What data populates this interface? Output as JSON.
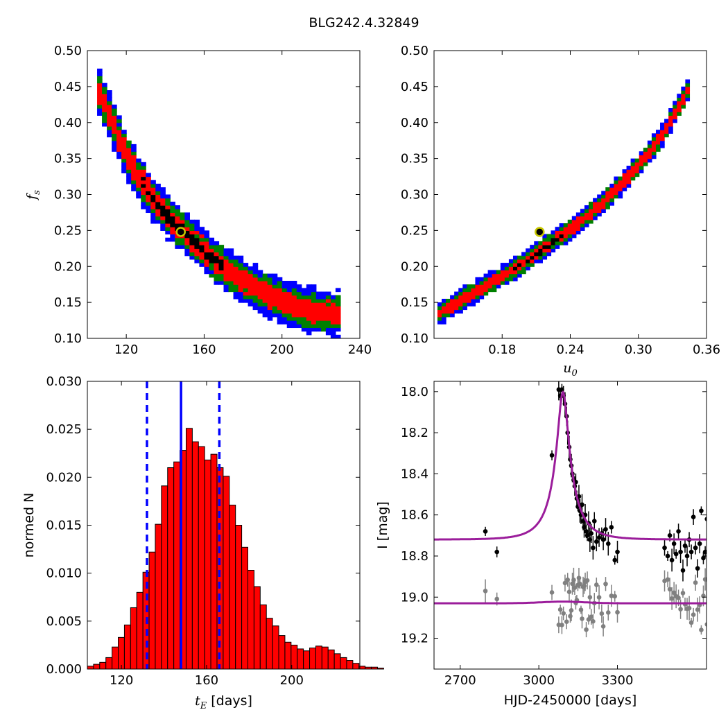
{
  "figure": {
    "title": "BLG242.4.32849"
  },
  "colors": {
    "hist_bar": "#ff0000",
    "hist_edge": "#000000",
    "vline": "#0000ff",
    "model_curve": "#9b1d9b",
    "source_points": "#000000",
    "residual_points": "#808080",
    "marker_fill": "#000000",
    "marker_edge": "#c8c800",
    "density_levels": [
      "#0000ff",
      "#008000",
      "#ff0000",
      "#000000"
    ]
  },
  "chart_data": [
    {
      "id": "fs_vs_tE",
      "type": "heatmap",
      "description_levels": [
        "blue",
        "green",
        "red",
        "black"
      ],
      "xlabel": "",
      "ylabel": "f_s",
      "xlim": [
        100,
        240
      ],
      "ylim": [
        0.1,
        0.5
      ],
      "xticks": [
        120,
        160,
        200,
        240
      ],
      "yticks": [
        "0.10",
        "0.15",
        "0.20",
        "0.25",
        "0.30",
        "0.35",
        "0.40",
        "0.45",
        "0.50"
      ],
      "ridge": [
        [
          105,
          0.45
        ],
        [
          110,
          0.42
        ],
        [
          115,
          0.385
        ],
        [
          120,
          0.355
        ],
        [
          125,
          0.33
        ],
        [
          130,
          0.31
        ],
        [
          135,
          0.29
        ],
        [
          140,
          0.275
        ],
        [
          145,
          0.26
        ],
        [
          150,
          0.247
        ],
        [
          155,
          0.235
        ],
        [
          160,
          0.222
        ],
        [
          165,
          0.21
        ],
        [
          170,
          0.2
        ],
        [
          175,
          0.19
        ],
        [
          180,
          0.181
        ],
        [
          185,
          0.173
        ],
        [
          190,
          0.165
        ],
        [
          195,
          0.158
        ],
        [
          200,
          0.152
        ],
        [
          205,
          0.147
        ],
        [
          210,
          0.143
        ],
        [
          215,
          0.14
        ],
        [
          220,
          0.137
        ],
        [
          225,
          0.135
        ],
        [
          230,
          0.134
        ]
      ],
      "best_fit": [
        148,
        0.248
      ]
    },
    {
      "id": "fs_vs_u0",
      "type": "heatmap",
      "xlabel": "u_0",
      "ylabel": "",
      "xlim": [
        0.12,
        0.36
      ],
      "ylim": [
        0.1,
        0.5
      ],
      "xticks": [
        "0.18",
        "0.24",
        "0.30",
        "0.36"
      ],
      "yticks": [
        "0.10",
        "0.15",
        "0.20",
        "0.25",
        "0.30",
        "0.35",
        "0.40",
        "0.45",
        "0.50"
      ],
      "ridge": [
        [
          0.123,
          0.134
        ],
        [
          0.16,
          0.168
        ],
        [
          0.2,
          0.206
        ],
        [
          0.24,
          0.252
        ],
        [
          0.27,
          0.29
        ],
        [
          0.3,
          0.34
        ],
        [
          0.32,
          0.38
        ],
        [
          0.345,
          0.45
        ]
      ],
      "best_fit": [
        0.213,
        0.248
      ]
    },
    {
      "id": "tE_histogram",
      "type": "bar",
      "xlabel": "t_E",
      "xlabel_suffix": "[days]",
      "ylabel": "normed N",
      "xlim": [
        104,
        232
      ],
      "ylim": [
        0,
        0.03
      ],
      "xticks": [
        120,
        160,
        200
      ],
      "yticks": [
        "0.000",
        "0.005",
        "0.010",
        "0.015",
        "0.020",
        "0.025",
        "0.030"
      ],
      "bin_start": 104,
      "bin_width": 2.9,
      "values": [
        0.0003,
        0.0005,
        0.0007,
        0.0012,
        0.0023,
        0.0033,
        0.0046,
        0.0064,
        0.008,
        0.0101,
        0.0122,
        0.0151,
        0.0191,
        0.021,
        0.0216,
        0.0228,
        0.0251,
        0.0237,
        0.0232,
        0.0218,
        0.0224,
        0.021,
        0.0201,
        0.0171,
        0.015,
        0.0127,
        0.0103,
        0.0086,
        0.0067,
        0.0053,
        0.0045,
        0.0035,
        0.0028,
        0.0025,
        0.0021,
        0.0019,
        0.0022,
        0.0024,
        0.0023,
        0.002,
        0.0016,
        0.0012,
        0.0009,
        0.0006,
        0.0003,
        0.0002,
        0.0002,
        0.0001
      ],
      "median": 148,
      "lower": 132,
      "upper": 166
    },
    {
      "id": "lightcurve",
      "type": "scatter",
      "xlabel": "HJD-2450000 [days]",
      "ylabel": "I [mag]",
      "xlim": [
        2600,
        3640
      ],
      "ylim": [
        19.35,
        17.95
      ],
      "xticks": [
        2700,
        3000,
        3300
      ],
      "yticks": [
        "18.0",
        "18.2",
        "18.4",
        "18.6",
        "18.8",
        "19.0",
        "19.2"
      ],
      "model": {
        "t0": 3092,
        "tE": 148,
        "u0": 0.213,
        "fs": 0.248,
        "I_base": 18.72
      },
      "residual_baseline": 19.03,
      "observations": [
        [
          2796,
          18.68
        ],
        [
          2840,
          18.78
        ],
        [
          3050,
          18.31
        ],
        [
          3076,
          17.99
        ],
        [
          3082,
          18.02
        ],
        [
          3088,
          17.99
        ],
        [
          3094,
          18.02
        ],
        [
          3100,
          18.06
        ],
        [
          3106,
          18.12
        ],
        [
          3110,
          18.2
        ],
        [
          3116,
          18.27
        ],
        [
          3120,
          18.33
        ],
        [
          3124,
          18.36
        ],
        [
          3128,
          18.4
        ],
        [
          3133,
          18.43
        ],
        [
          3137,
          18.46
        ],
        [
          3141,
          18.44
        ],
        [
          3145,
          18.52
        ],
        [
          3149,
          18.56
        ],
        [
          3153,
          18.51
        ],
        [
          3157,
          18.58
        ],
        [
          3161,
          18.6
        ],
        [
          3165,
          18.55
        ],
        [
          3169,
          18.63
        ],
        [
          3173,
          18.66
        ],
        [
          3177,
          18.6
        ],
        [
          3181,
          18.68
        ],
        [
          3185,
          18.7
        ],
        [
          3190,
          18.64
        ],
        [
          3195,
          18.72
        ],
        [
          3200,
          18.69
        ],
        [
          3207,
          18.76
        ],
        [
          3212,
          18.63
        ],
        [
          3220,
          18.73
        ],
        [
          3230,
          18.71
        ],
        [
          3240,
          18.69
        ],
        [
          3246,
          18.72
        ],
        [
          3255,
          18.67
        ],
        [
          3265,
          18.74
        ],
        [
          3277,
          18.66
        ],
        [
          3290,
          18.82
        ],
        [
          3300,
          18.78
        ],
        [
          3480,
          18.76
        ],
        [
          3492,
          18.8
        ],
        [
          3500,
          18.7
        ],
        [
          3508,
          18.82
        ],
        [
          3516,
          18.74
        ],
        [
          3524,
          18.79
        ],
        [
          3533,
          18.68
        ],
        [
          3541,
          18.78
        ],
        [
          3550,
          18.87
        ],
        [
          3558,
          18.75
        ],
        [
          3566,
          18.8
        ],
        [
          3574,
          18.72
        ],
        [
          3582,
          18.78
        ],
        [
          3590,
          18.61
        ],
        [
          3598,
          18.76
        ],
        [
          3606,
          18.86
        ],
        [
          3614,
          18.74
        ],
        [
          3620,
          18.58
        ],
        [
          3628,
          18.81
        ],
        [
          3635,
          18.78
        ],
        [
          3642,
          18.62
        ]
      ]
    }
  ]
}
